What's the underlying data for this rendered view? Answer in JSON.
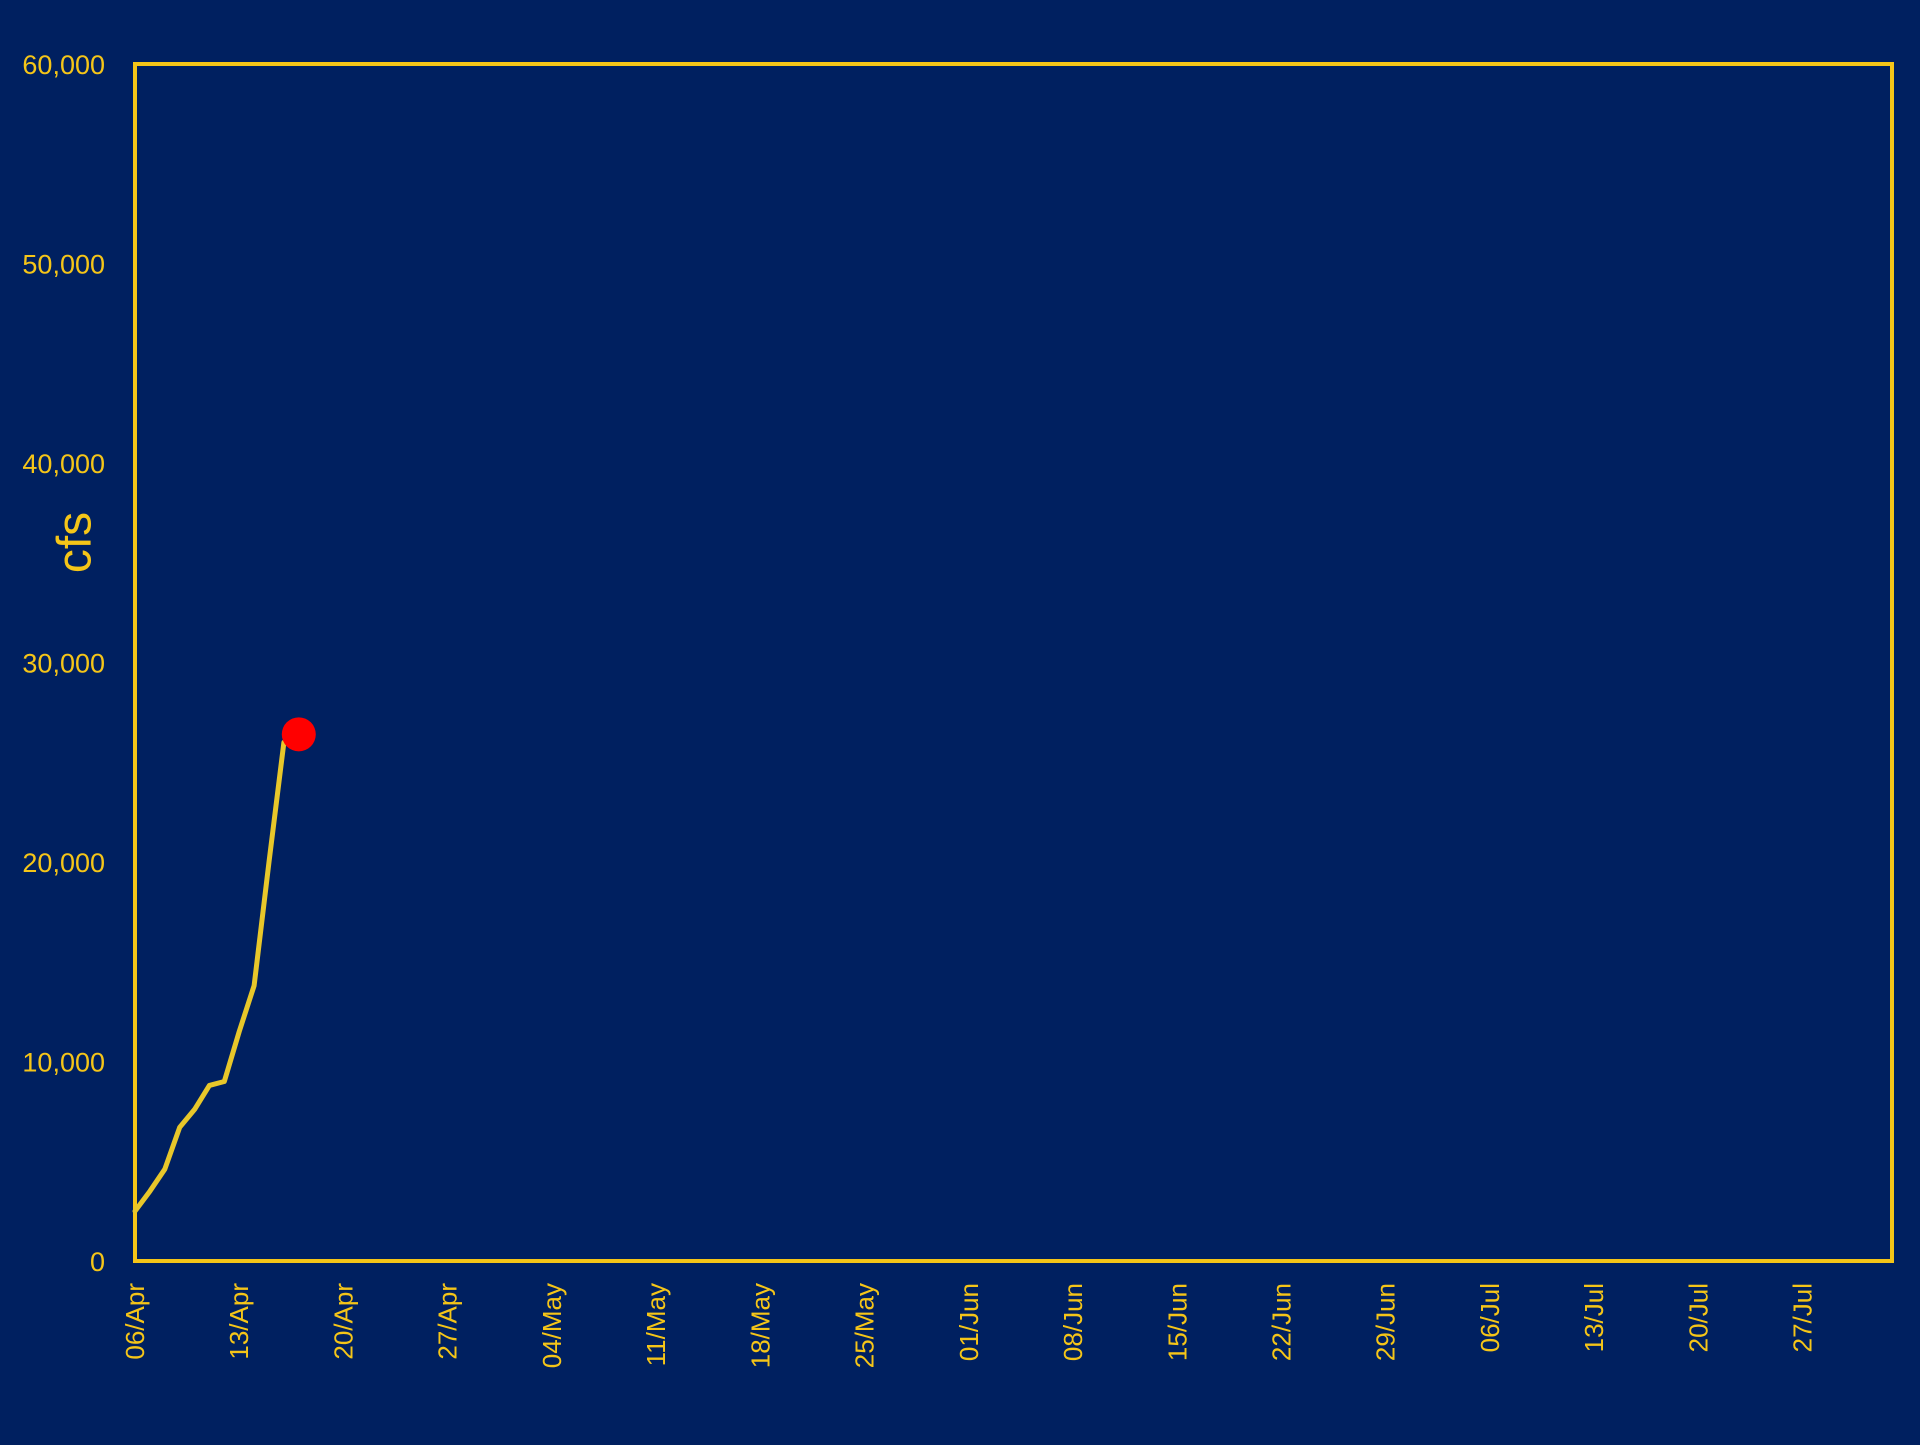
{
  "colors": {
    "background": "#002060",
    "axis": "#F5C518",
    "series_line": "#E8C72A",
    "last_point": "#FF0000"
  },
  "chart_data": {
    "type": "line",
    "title": "",
    "xlabel": "",
    "ylabel": "cfs",
    "xlim": [
      "2023-04-06",
      "2023-08-02"
    ],
    "ylim": [
      0,
      60000
    ],
    "grid": false,
    "legend": "none",
    "y_ticks": [
      0,
      10000,
      20000,
      30000,
      40000,
      50000,
      60000
    ],
    "y_tick_labels": [
      "0",
      "10,000",
      "20,000",
      "30,000",
      "40,000",
      "50,000",
      "60,000"
    ],
    "x_ticks": [
      "2023-04-06",
      "2023-04-13",
      "2023-04-20",
      "2023-04-27",
      "2023-05-04",
      "2023-05-11",
      "2023-05-18",
      "2023-05-25",
      "2023-06-01",
      "2023-06-08",
      "2023-06-15",
      "2023-06-22",
      "2023-06-29",
      "2023-07-06",
      "2023-07-13",
      "2023-07-20",
      "2023-07-27"
    ],
    "x_tick_labels": [
      "06/Apr",
      "13/Apr",
      "20/Apr",
      "27/Apr",
      "04/May",
      "11/May",
      "18/May",
      "25/May",
      "01/Jun",
      "08/Jun",
      "15/Jun",
      "22/Jun",
      "29/Jun",
      "06/Jul",
      "13/Jul",
      "20/Jul",
      "27/Jul"
    ],
    "series": [
      {
        "x": [
          "2023-04-06",
          "2023-04-07",
          "2023-04-08",
          "2023-04-09",
          "2023-04-10",
          "2023-04-11",
          "2023-04-12",
          "2023-04-13",
          "2023-04-14",
          "2023-04-15",
          "2023-04-16",
          "2023-04-17"
        ],
        "values": [
          2500,
          3500,
          4600,
          6700,
          7600,
          8800,
          9000,
          11500,
          13800,
          20000,
          26000,
          26400
        ]
      }
    ],
    "highlight_point": {
      "x": "2023-04-17",
      "y": 26400
    }
  }
}
